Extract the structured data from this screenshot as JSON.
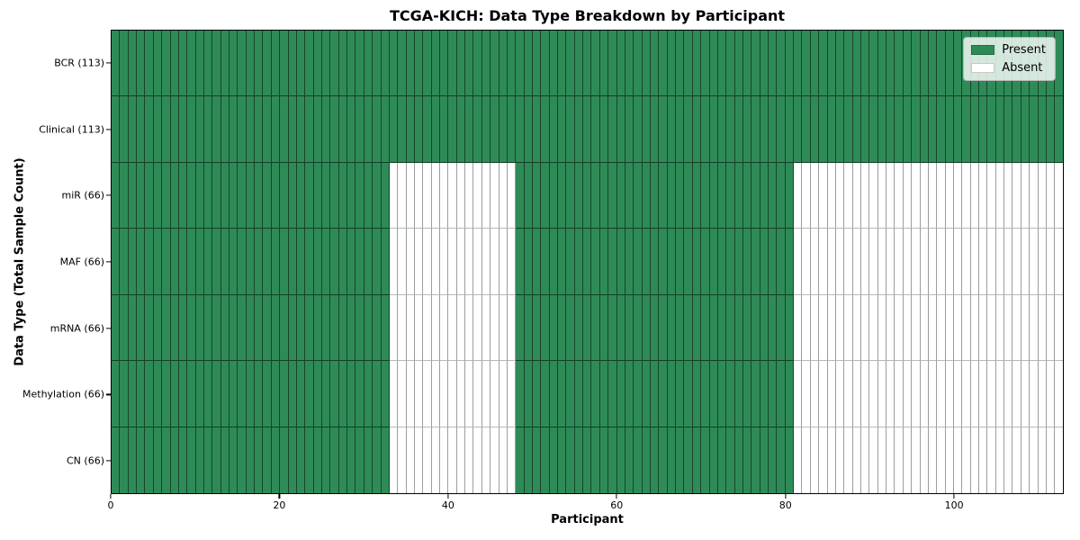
{
  "chart_data": {
    "type": "heatmap",
    "title": "TCGA-KICH: Data Type Breakdown by Participant",
    "xlabel": "Participant",
    "ylabel": "Data Type (Total Sample Count)",
    "n_participants": 113,
    "x_ticks": [
      0,
      20,
      40,
      60,
      80,
      100
    ],
    "grid": true,
    "legend_position": "upper right",
    "rows": [
      {
        "label": "BCR (113)",
        "total": 113,
        "present_ranges": [
          [
            0,
            113
          ]
        ]
      },
      {
        "label": "Clinical (113)",
        "total": 113,
        "present_ranges": [
          [
            0,
            113
          ]
        ]
      },
      {
        "label": "miR (66)",
        "total": 66,
        "present_ranges": [
          [
            0,
            33
          ],
          [
            48,
            81
          ]
        ]
      },
      {
        "label": "MAF (66)",
        "total": 66,
        "present_ranges": [
          [
            0,
            33
          ],
          [
            48,
            81
          ]
        ]
      },
      {
        "label": "mRNA (66)",
        "total": 66,
        "present_ranges": [
          [
            0,
            33
          ],
          [
            48,
            81
          ]
        ]
      },
      {
        "label": "Methylation (66)",
        "total": 66,
        "present_ranges": [
          [
            0,
            33
          ],
          [
            48,
            81
          ]
        ]
      },
      {
        "label": "CN (66)",
        "total": 66,
        "present_ranges": [
          [
            0,
            33
          ],
          [
            48,
            81
          ]
        ]
      }
    ],
    "legend": [
      {
        "label": "Present",
        "color": "#2e8b57"
      },
      {
        "label": "Absent",
        "color": "#ffffff"
      }
    ],
    "colors": {
      "present": "#2e8b57",
      "absent": "#ffffff",
      "cell_edge": "#000000"
    }
  }
}
